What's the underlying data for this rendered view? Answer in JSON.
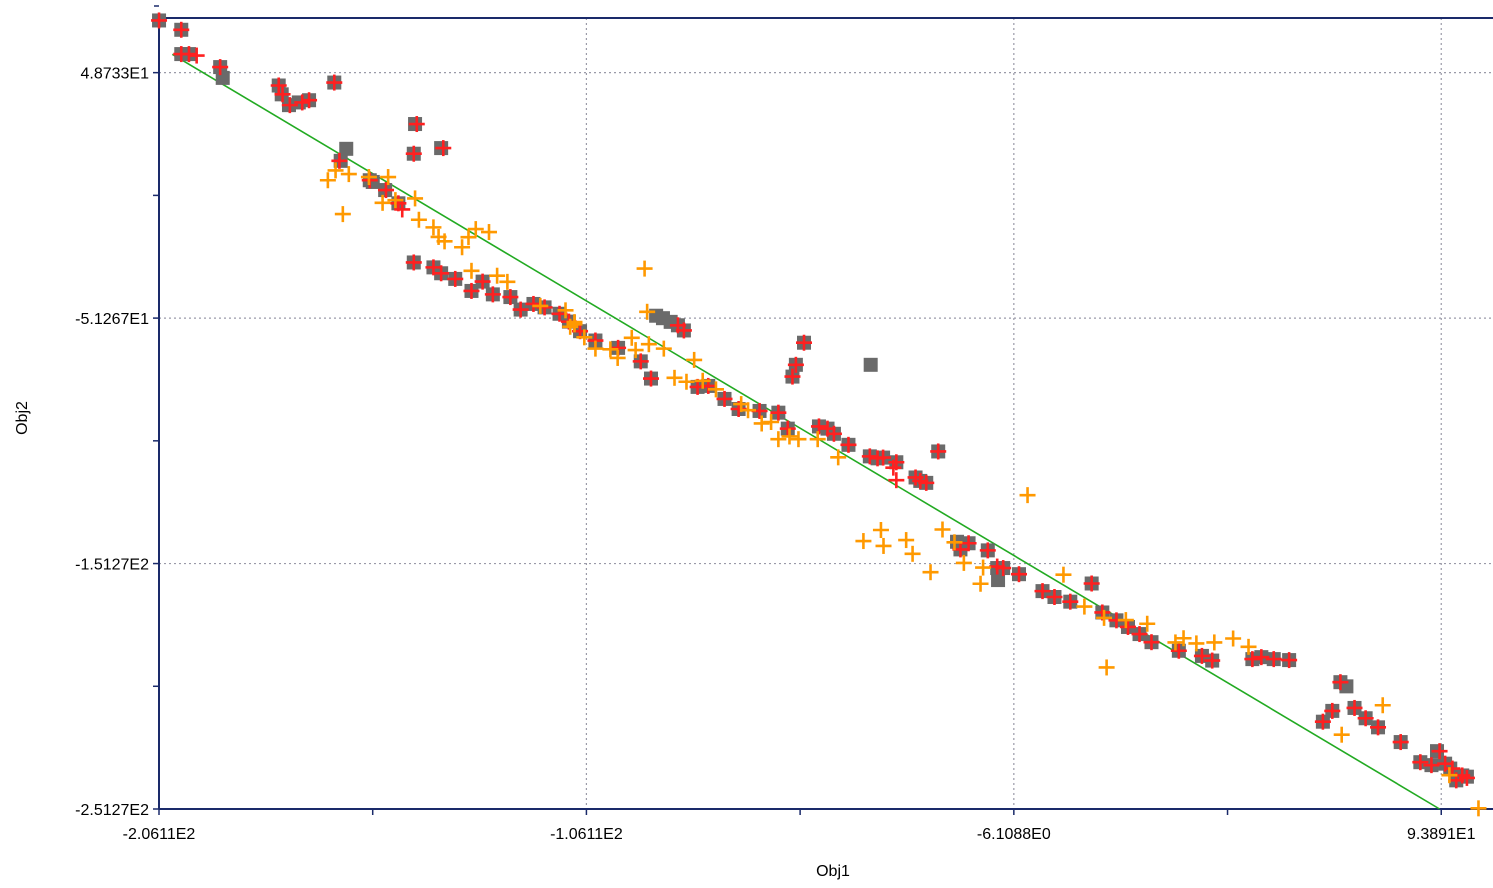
{
  "chart_data": {
    "type": "scatter",
    "xlabel": "Obj1",
    "ylabel": "Obj2",
    "xlim": [
      -206.11,
      106.0
    ],
    "ylim": [
      -251.27,
      71.0
    ],
    "xticks": [
      -206.11,
      -156.11,
      -106.11,
      -56.11,
      -6.1088,
      43.89,
      93.891
    ],
    "xtick_labels": [
      "-2.0611E2",
      "",
      "-1.0611E2",
      "",
      "-6.1088E0",
      "",
      "9.3891E1"
    ],
    "yticks": [
      -251.27,
      -201.27,
      -151.27,
      -101.27,
      -51.267,
      -1.27,
      48.733
    ],
    "ytick_labels": [
      "-2.5127E2",
      "",
      "-1.5127E2",
      "",
      "-5.1267E1",
      "",
      "4.8733E1"
    ],
    "grid": true,
    "fit_line": {
      "color": "#22aa22",
      "x": [
        -203.0,
        93.5
      ],
      "y": [
        56.2,
        -251.27
      ]
    },
    "series": [
      {
        "marker": "square",
        "color": "#6a6a6a",
        "points": [
          [
            -206.1,
            70.0
          ],
          [
            -200.9,
            66.2
          ],
          [
            -200.9,
            56.3
          ],
          [
            -199.1,
            56.3
          ],
          [
            -191.8,
            51.0
          ],
          [
            -191.2,
            46.6
          ],
          [
            -178.1,
            43.5
          ],
          [
            -177.4,
            39.9
          ],
          [
            -175.7,
            35.5
          ],
          [
            -173.4,
            36.6
          ],
          [
            -171.0,
            37.5
          ],
          [
            -165.1,
            44.7
          ],
          [
            -163.6,
            12.8
          ],
          [
            -162.3,
            17.7
          ],
          [
            -156.8,
            4.9
          ],
          [
            -156.1,
            4.2
          ],
          [
            -153.2,
            0.9
          ],
          [
            -150.1,
            -4.5
          ],
          [
            -146.5,
            -28.6
          ],
          [
            -146.5,
            15.7
          ],
          [
            -146.2,
            27.8
          ],
          [
            -141.9,
            -30.6
          ],
          [
            -140.1,
            18.0
          ],
          [
            -140.1,
            -33.0
          ],
          [
            -136.8,
            -35.3
          ],
          [
            -133.0,
            -40.2
          ],
          [
            -130.4,
            -36.4
          ],
          [
            -128.0,
            -41.6
          ],
          [
            -123.9,
            -42.7
          ],
          [
            -121.5,
            -47.8
          ],
          [
            -118.5,
            -45.5
          ],
          [
            -115.9,
            -46.9
          ],
          [
            -112.4,
            -49.5
          ],
          [
            -110.2,
            -52.7
          ],
          [
            -107.6,
            -56.6
          ],
          [
            -104.0,
            -60.4
          ],
          [
            -98.7,
            -63.4
          ],
          [
            -93.4,
            -68.9
          ],
          [
            -91.0,
            -75.9
          ],
          [
            -89.8,
            -50.3
          ],
          [
            -88.2,
            -51.3
          ],
          [
            -86.4,
            -52.8
          ],
          [
            -84.7,
            -54.2
          ],
          [
            -83.3,
            -56.3
          ],
          [
            -80.1,
            -79.3
          ],
          [
            -77.6,
            -78.9
          ],
          [
            -73.8,
            -84.2
          ],
          [
            -70.5,
            -88.3
          ],
          [
            -65.6,
            -89.1
          ],
          [
            -61.2,
            -89.8
          ],
          [
            -59.0,
            -96.3
          ],
          [
            -57.9,
            -75.1
          ],
          [
            -57.1,
            -70.3
          ],
          [
            -55.2,
            -61.3
          ],
          [
            -51.7,
            -95.4
          ],
          [
            -49.7,
            -96.3
          ],
          [
            -48.2,
            -98.4
          ],
          [
            -44.8,
            -102.9
          ],
          [
            -39.8,
            -107.6
          ],
          [
            -39.6,
            -70.3
          ],
          [
            -38.0,
            -108.4
          ],
          [
            -36.7,
            -108.1
          ],
          [
            -33.6,
            -110.0
          ],
          [
            -29.1,
            -116.2
          ],
          [
            -28.0,
            -117.6
          ],
          [
            -26.6,
            -118.4
          ],
          [
            -23.8,
            -105.6
          ],
          [
            -19.4,
            -142.4
          ],
          [
            -18.6,
            -145.5
          ],
          [
            -16.7,
            -143.0
          ],
          [
            -12.2,
            -145.9
          ],
          [
            -8.6,
            -153.1
          ],
          [
            -4.9,
            -155.6
          ],
          [
            0.6,
            -162.5
          ],
          [
            3.4,
            -164.9
          ],
          [
            7.1,
            -166.8
          ],
          [
            12.1,
            -159.4
          ],
          [
            14.6,
            -171.2
          ],
          [
            17.9,
            -174.4
          ],
          [
            20.6,
            -177.1
          ],
          [
            23.3,
            -180.0
          ],
          [
            26.1,
            -183.3
          ],
          [
            32.5,
            -186.8
          ],
          [
            37.9,
            -188.9
          ],
          [
            40.3,
            -190.8
          ],
          [
            49.7,
            -190.2
          ],
          [
            51.8,
            -189.4
          ],
          [
            54.7,
            -190.2
          ],
          [
            58.3,
            -190.6
          ],
          [
            66.2,
            -215.7
          ],
          [
            68.4,
            -211.3
          ],
          [
            70.3,
            -199.6
          ],
          [
            71.7,
            -201.3
          ],
          [
            73.6,
            -210.1
          ],
          [
            76.2,
            -214.3
          ],
          [
            79.1,
            -218.0
          ],
          [
            84.4,
            -224.0
          ],
          [
            89.0,
            -232.2
          ],
          [
            91.6,
            -233.4
          ],
          [
            92.9,
            -227.7
          ],
          [
            94.8,
            -232.8
          ],
          [
            96.0,
            -234.8
          ],
          [
            97.4,
            -239.6
          ],
          [
            98.8,
            -237.6
          ],
          [
            99.9,
            -238.1
          ],
          [
            -10.0,
            -153.1
          ],
          [
            -9.8,
            -158.0
          ]
        ]
      },
      {
        "marker": "plus",
        "color": "#ff2020",
        "points": [
          [
            -206.1,
            70.0
          ],
          [
            -200.9,
            66.2
          ],
          [
            -200.9,
            56.3
          ],
          [
            -199.1,
            56.3
          ],
          [
            -197.3,
            55.7
          ],
          [
            -191.8,
            51.0
          ],
          [
            -178.1,
            43.5
          ],
          [
            -177.2,
            39.9
          ],
          [
            -175.5,
            35.5
          ],
          [
            -172.6,
            36.6
          ],
          [
            -171.0,
            37.5
          ],
          [
            -165.1,
            44.7
          ],
          [
            -163.9,
            12.8
          ],
          [
            -156.8,
            4.9
          ],
          [
            -153.0,
            0.9
          ],
          [
            -150.1,
            -4.5
          ],
          [
            -149.2,
            -7.0
          ],
          [
            -146.5,
            -28.6
          ],
          [
            -146.5,
            15.7
          ],
          [
            -145.8,
            27.8
          ],
          [
            -141.9,
            -30.6
          ],
          [
            -139.6,
            18.0
          ],
          [
            -140.1,
            -33.0
          ],
          [
            -136.8,
            -35.3
          ],
          [
            -133.0,
            -40.2
          ],
          [
            -130.4,
            -36.4
          ],
          [
            -128.0,
            -41.6
          ],
          [
            -123.9,
            -42.7
          ],
          [
            -121.5,
            -47.8
          ],
          [
            -118.5,
            -45.5
          ],
          [
            -115.9,
            -46.9
          ],
          [
            -112.4,
            -49.5
          ],
          [
            -110.2,
            -52.7
          ],
          [
            -107.6,
            -56.6
          ],
          [
            -104.0,
            -60.4
          ],
          [
            -98.7,
            -63.4
          ],
          [
            -93.4,
            -68.9
          ],
          [
            -91.0,
            -75.9
          ],
          [
            -84.7,
            -54.2
          ],
          [
            -83.3,
            -56.3
          ],
          [
            -80.1,
            -79.3
          ],
          [
            -77.6,
            -78.9
          ],
          [
            -73.8,
            -84.2
          ],
          [
            -70.5,
            -88.3
          ],
          [
            -65.6,
            -89.1
          ],
          [
            -61.2,
            -89.8
          ],
          [
            -59.0,
            -96.3
          ],
          [
            -57.9,
            -75.1
          ],
          [
            -57.1,
            -70.3
          ],
          [
            -55.2,
            -61.3
          ],
          [
            -51.7,
            -95.4
          ],
          [
            -49.7,
            -96.3
          ],
          [
            -48.2,
            -98.4
          ],
          [
            -44.8,
            -102.9
          ],
          [
            -39.8,
            -107.6
          ],
          [
            -38.0,
            -108.4
          ],
          [
            -36.7,
            -108.1
          ],
          [
            -33.6,
            -110.0
          ],
          [
            -29.1,
            -116.2
          ],
          [
            -28.0,
            -117.6
          ],
          [
            -26.6,
            -118.4
          ],
          [
            -23.8,
            -105.6
          ],
          [
            -18.6,
            -145.5
          ],
          [
            -16.7,
            -143.0
          ],
          [
            -12.2,
            -145.9
          ],
          [
            -8.6,
            -153.1
          ],
          [
            -4.9,
            -155.6
          ],
          [
            0.6,
            -162.5
          ],
          [
            3.4,
            -164.9
          ],
          [
            7.1,
            -166.8
          ],
          [
            12.1,
            -159.4
          ],
          [
            14.6,
            -171.2
          ],
          [
            17.9,
            -174.4
          ],
          [
            20.6,
            -177.1
          ],
          [
            23.3,
            -180.0
          ],
          [
            26.1,
            -183.3
          ],
          [
            32.5,
            -186.8
          ],
          [
            37.9,
            -188.9
          ],
          [
            40.3,
            -190.8
          ],
          [
            49.7,
            -190.2
          ],
          [
            51.8,
            -189.4
          ],
          [
            54.7,
            -190.2
          ],
          [
            58.3,
            -190.6
          ],
          [
            66.2,
            -215.7
          ],
          [
            68.4,
            -211.3
          ],
          [
            70.3,
            -199.6
          ],
          [
            73.6,
            -210.1
          ],
          [
            76.2,
            -214.3
          ],
          [
            79.1,
            -218.0
          ],
          [
            84.4,
            -224.0
          ],
          [
            89.0,
            -232.2
          ],
          [
            91.6,
            -233.4
          ],
          [
            93.5,
            -227.7
          ],
          [
            94.8,
            -232.8
          ],
          [
            96.5,
            -234.8
          ],
          [
            97.4,
            -239.6
          ],
          [
            98.8,
            -237.6
          ],
          [
            99.9,
            -238.6
          ],
          [
            -10.0,
            -152.5
          ],
          [
            -33.6,
            -117.3
          ],
          [
            -34.3,
            -112.2
          ]
        ]
      },
      {
        "marker": "plus",
        "color": "#ff9900",
        "points": [
          [
            -166.6,
            4.9
          ],
          [
            -164.8,
            8.9
          ],
          [
            -161.7,
            7.4
          ],
          [
            -157.0,
            6.2
          ],
          [
            -152.5,
            6.2
          ],
          [
            -146.2,
            -2.5
          ],
          [
            -150.8,
            -3.2
          ],
          [
            -153.8,
            -4.3
          ],
          [
            -163.1,
            -8.9
          ],
          [
            -145.3,
            -11.2
          ],
          [
            -141.9,
            -14.3
          ],
          [
            -140.7,
            -18.2
          ],
          [
            -139.3,
            -20.0
          ],
          [
            -135.2,
            -22.4
          ],
          [
            -133.7,
            -18.3
          ],
          [
            -132.0,
            -15.0
          ],
          [
            -128.9,
            -16.2
          ],
          [
            -133.0,
            -32.0
          ],
          [
            -127.0,
            -34.0
          ],
          [
            -124.6,
            -36.5
          ],
          [
            -116.9,
            -46.3
          ],
          [
            -111.0,
            -48.1
          ],
          [
            -108.9,
            -52.9
          ],
          [
            -106.6,
            -59.1
          ],
          [
            -104.0,
            -63.7
          ],
          [
            -100.5,
            -64.0
          ],
          [
            -98.8,
            -67.5
          ],
          [
            -95.5,
            -59.3
          ],
          [
            -94.6,
            -64.3
          ],
          [
            -92.5,
            -31.1
          ],
          [
            -91.9,
            -48.7
          ],
          [
            -91.5,
            -61.9
          ],
          [
            -88.0,
            -63.7
          ],
          [
            -85.5,
            -75.6
          ],
          [
            -82.7,
            -77.2
          ],
          [
            -80.9,
            -68.3
          ],
          [
            -78.9,
            -76.8
          ],
          [
            -75.8,
            -80.3
          ],
          [
            -69.9,
            -86.3
          ],
          [
            -68.3,
            -88.8
          ],
          [
            -65.1,
            -94.2
          ],
          [
            -62.9,
            -93.6
          ],
          [
            -61.2,
            -100.6
          ],
          [
            -58.6,
            -99.5
          ],
          [
            -56.5,
            -100.6
          ],
          [
            -52.0,
            -100.6
          ],
          [
            -47.2,
            -108.0
          ],
          [
            -41.3,
            -142.1
          ],
          [
            -37.2,
            -137.6
          ],
          [
            -36.6,
            -144.1
          ],
          [
            -31.3,
            -141.7
          ],
          [
            -29.8,
            -147.3
          ],
          [
            -25.6,
            -154.8
          ],
          [
            -22.8,
            -137.4
          ],
          [
            -20.0,
            -142.6
          ],
          [
            -17.8,
            -151.0
          ],
          [
            -13.9,
            -159.5
          ],
          [
            -13.3,
            -152.9
          ],
          [
            -2.9,
            -123.4
          ],
          [
            5.5,
            -155.8
          ],
          [
            10.4,
            -168.8
          ],
          [
            15.0,
            -173.4
          ],
          [
            15.6,
            -193.6
          ],
          [
            20.1,
            -174.3
          ],
          [
            25.1,
            -175.8
          ],
          [
            31.7,
            -183.4
          ],
          [
            33.6,
            -181.7
          ],
          [
            36.6,
            -183.8
          ],
          [
            40.8,
            -183.4
          ],
          [
            45.2,
            -181.8
          ],
          [
            48.8,
            -185.2
          ],
          [
            70.6,
            -221.0
          ],
          [
            80.2,
            -209.0
          ],
          [
            95.8,
            -237.5
          ],
          [
            102.6,
            -251.0
          ],
          [
            -109.9,
            -54.8
          ],
          [
            -108.9,
            -53.8
          ]
        ]
      }
    ]
  }
}
